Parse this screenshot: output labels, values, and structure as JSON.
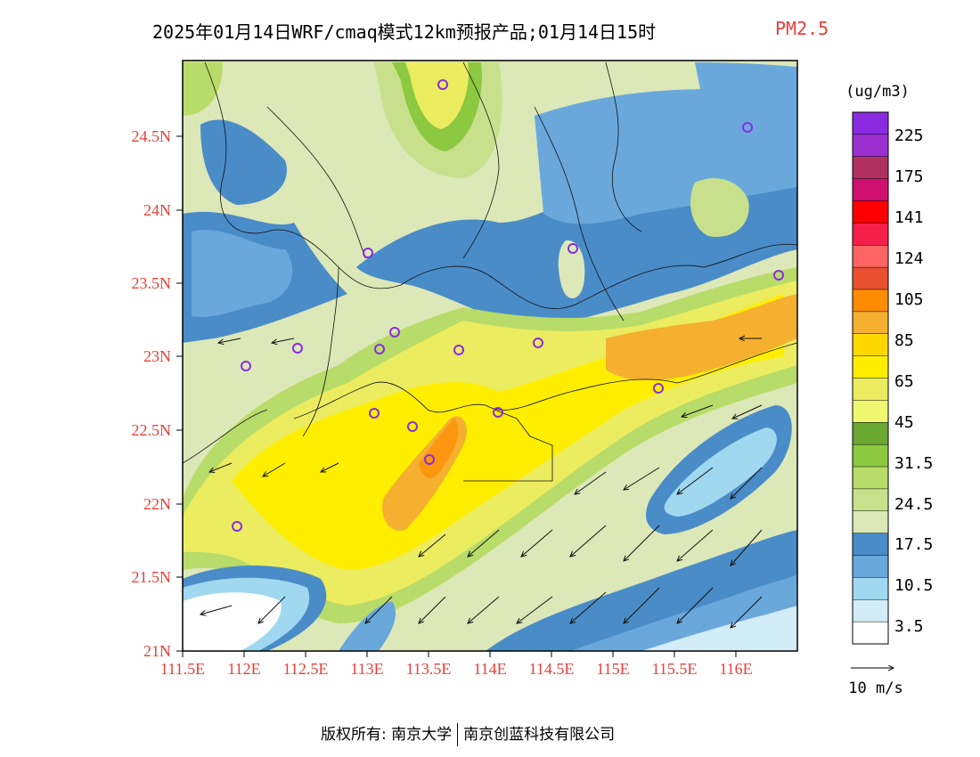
{
  "title": {
    "main": "2025年01月14日WRF/cmaq模式12km预报产品;01月14日15时",
    "variable": "PM2.5"
  },
  "axes": {
    "lat_labels": [
      "24.5N",
      "24N",
      "23.5N",
      "23N",
      "22.5N",
      "22N",
      "21.5N",
      "21N"
    ],
    "lon_labels": [
      "111.5E",
      "112E",
      "112.5E",
      "113E",
      "113.5E",
      "114E",
      "114.5E",
      "115E",
      "115.5E",
      "116E"
    ]
  },
  "legend": {
    "unit": "(ug/m3)",
    "labels": [
      "225",
      "175",
      "141",
      "124",
      "105",
      "85",
      "65",
      "45",
      "31.5",
      "24.5",
      "17.5",
      "10.5",
      "3.5"
    ],
    "colors": [
      "#8a2be2",
      "#9b30d0",
      "#b03060",
      "#d01070",
      "#ff0000",
      "#f5204a",
      "#ff6464",
      "#e85030",
      "#ff8c00",
      "#f5b030",
      "#ffd700",
      "#ffee00",
      "#ecec60",
      "#f0f870",
      "#6aa832",
      "#8cc840",
      "#b8dc6a",
      "#c8e08c",
      "#dde8b8",
      "#4a8cc8",
      "#6aa8dc",
      "#a0d8f0",
      "#d2ecf8",
      "#ffffff"
    ]
  },
  "wind_scale": {
    "label": "10 m/s"
  },
  "footer": {
    "left": "版权所有: 南京大学",
    "right": "南京创蓝科技有限公司"
  }
}
